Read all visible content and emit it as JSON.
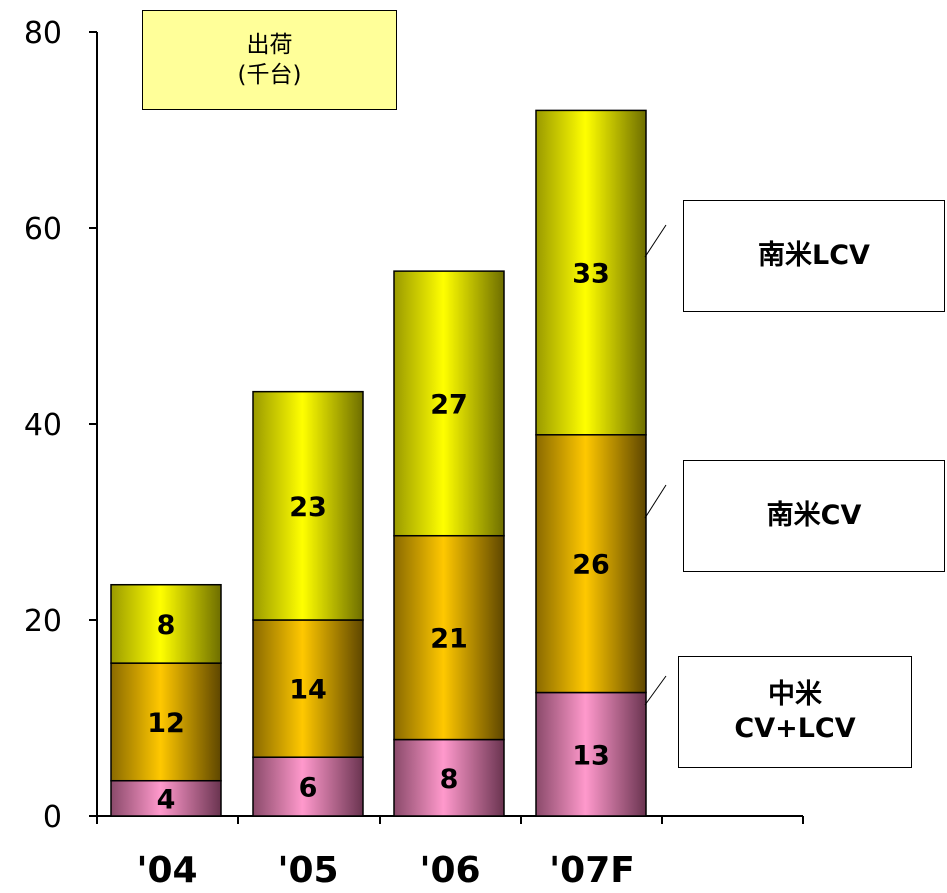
{
  "chart_data": {
    "type": "bar",
    "stacked": true,
    "categories": [
      "'04",
      "'05",
      "'06",
      "'07F"
    ],
    "series": [
      {
        "name": "中米 CV+LCV",
        "values": [
          4,
          6,
          8,
          13
        ],
        "color": "#ff99cc"
      },
      {
        "name": "南米CV",
        "values": [
          12,
          14,
          21,
          26
        ],
        "color": "#ffcc00"
      },
      {
        "name": "南米LCV",
        "values": [
          8,
          23,
          27,
          33
        ],
        "color": "#ffff00"
      }
    ],
    "bar_totals_shown_by_height": [
      23.6,
      43.3,
      55.6,
      72.0
    ],
    "segment_tops_shown_by_height": [
      [
        3.6,
        15.6,
        23.6
      ],
      [
        6.0,
        20.0,
        43.3
      ],
      [
        7.8,
        28.6,
        55.6
      ],
      [
        12.6,
        38.9,
        72.0
      ]
    ],
    "ylim": [
      0,
      80
    ],
    "yticks": [
      "0",
      "20",
      "40",
      "60",
      "80"
    ],
    "unit_label_line1": "出荷",
    "unit_label_line2": "(千台)",
    "legend": {
      "lcv": "南米LCV",
      "cv": "南米CV",
      "central_line1": "中米",
      "central_line2": "CV+LCV"
    },
    "grid": false
  }
}
